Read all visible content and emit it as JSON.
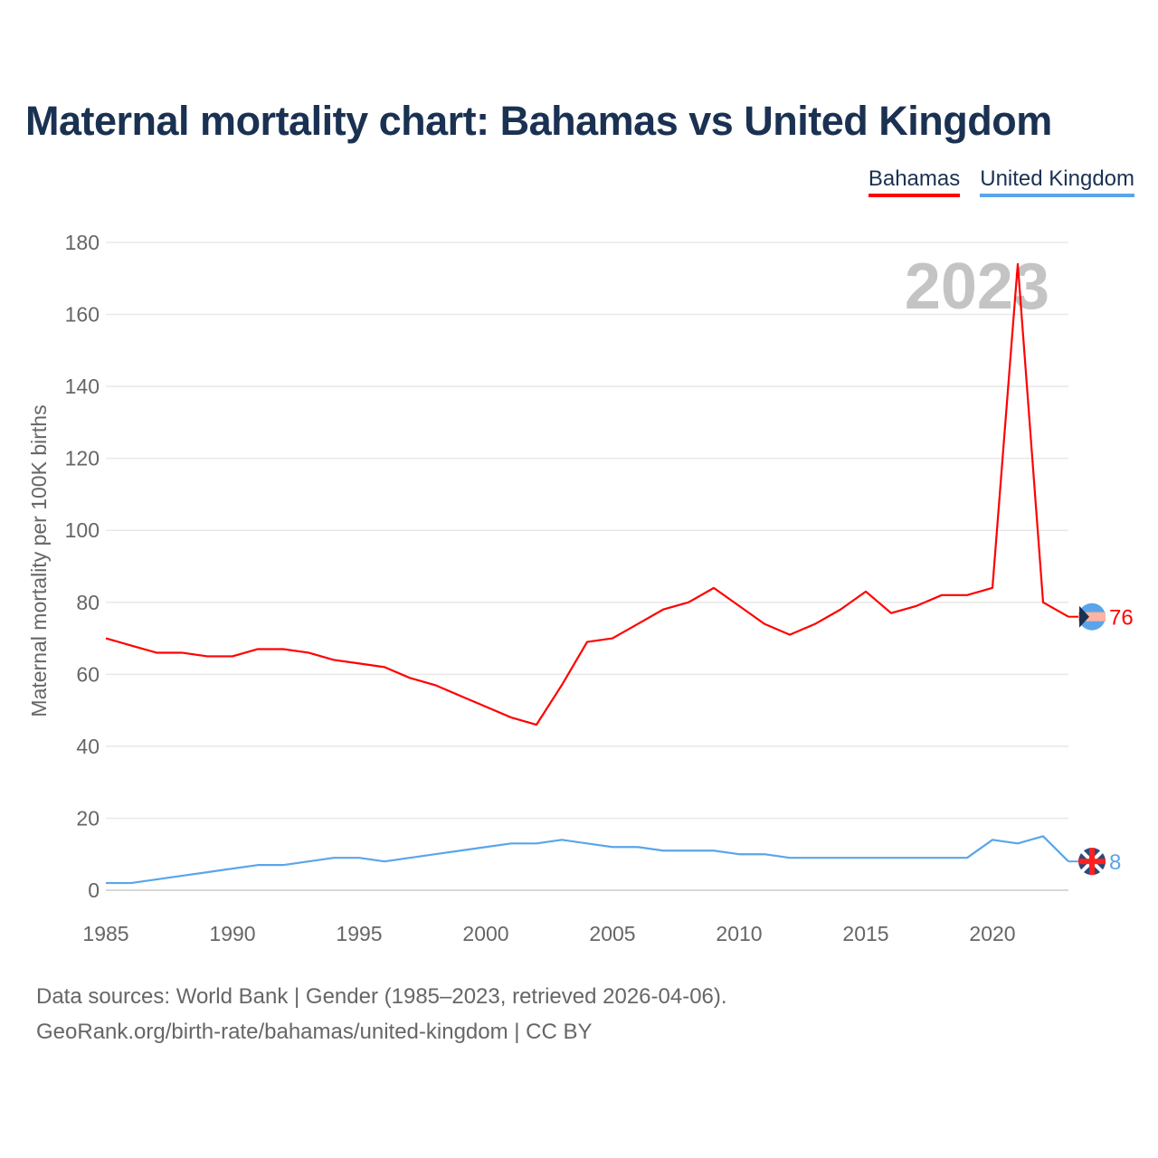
{
  "chart_data": {
    "type": "line",
    "title": "Maternal mortality chart: Bahamas vs United Kingdom",
    "xlabel": "",
    "ylabel": "Maternal mortality per 100K births",
    "xlim": [
      1985,
      2023
    ],
    "ylim": [
      0,
      180
    ],
    "x_ticks": [
      "1985",
      "1990",
      "1995",
      "2000",
      "2005",
      "2010",
      "2015",
      "2020"
    ],
    "y_ticks": [
      "0",
      "20",
      "40",
      "60",
      "80",
      "100",
      "120",
      "140",
      "160",
      "180"
    ],
    "grid": true,
    "legend_placement": "top-right",
    "year_label": "2023",
    "x": [
      1985,
      1986,
      1987,
      1988,
      1989,
      1990,
      1991,
      1992,
      1993,
      1994,
      1995,
      1996,
      1997,
      1998,
      1999,
      2000,
      2001,
      2002,
      2003,
      2004,
      2005,
      2006,
      2007,
      2008,
      2009,
      2010,
      2011,
      2012,
      2013,
      2014,
      2015,
      2016,
      2017,
      2018,
      2019,
      2020,
      2021,
      2022,
      2023
    ],
    "series": [
      {
        "name": "Bahamas",
        "color": "#ff0000",
        "end_label": "76",
        "values": [
          70,
          68,
          66,
          66,
          65,
          65,
          67,
          67,
          66,
          64,
          63,
          62,
          59,
          57,
          54,
          51,
          48,
          46,
          57,
          69,
          70,
          74,
          78,
          80,
          84,
          79,
          74,
          71,
          74,
          78,
          83,
          77,
          79,
          82,
          82,
          84,
          174,
          80,
          76
        ]
      },
      {
        "name": "United Kingdom",
        "color": "#5aa5ea",
        "end_label": "8",
        "values": [
          2,
          2,
          3,
          4,
          5,
          6,
          7,
          7,
          8,
          9,
          9,
          8,
          9,
          10,
          11,
          12,
          13,
          13,
          14,
          13,
          12,
          12,
          11,
          11,
          11,
          10,
          10,
          9,
          9,
          9,
          9,
          9,
          9,
          9,
          9,
          14,
          13,
          15,
          8
        ]
      }
    ]
  },
  "footer": {
    "line1": "Data sources: World Bank | Gender (1985–2023, retrieved 2026-04-06).",
    "line2": "GeoRank.org/birth-rate/bahamas/united-kingdom | CC BY"
  }
}
